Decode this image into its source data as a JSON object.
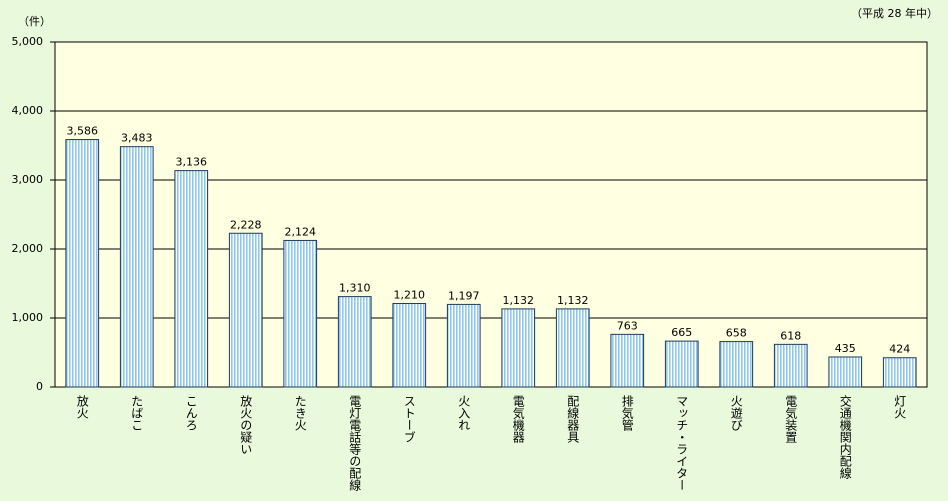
{
  "chart_data": {
    "type": "bar",
    "y_label": "（件）",
    "note": "（平成 28 年中）",
    "categories": [
      "放火",
      "たばこ",
      "こんろ",
      "放火の疑い",
      "たき火",
      "電灯電話等の配線",
      "ストーブ",
      "火入れ",
      "電気機器",
      "配線器具",
      "排気管",
      "マッチ・ライター",
      "火遊び",
      "電気装置",
      "交通機関内配線",
      "灯火"
    ],
    "values": [
      3586,
      3483,
      3136,
      2228,
      2124,
      1310,
      1210,
      1197,
      1132,
      1132,
      763,
      665,
      658,
      618,
      435,
      424
    ],
    "value_labels": [
      "3,586",
      "3,483",
      "3,136",
      "2,228",
      "2,124",
      "1,310",
      "1,210",
      "1,197",
      "1,132",
      "1,132",
      "763",
      "665",
      "658",
      "618",
      "435",
      "424"
    ],
    "color": "#8ec8ec",
    "ylim": [
      0,
      5000
    ],
    "yticks": [
      0,
      {
        "value": 1000,
        "label": "1,000"
      },
      {
        "value": 2000,
        "label": "2,000"
      },
      {
        "value": 3000,
        "label": "3,000"
      },
      {
        "value": 4000,
        "label": "4,000"
      },
      {
        "value": 5000,
        "label": "5,000"
      }
    ],
    "grid": true
  }
}
